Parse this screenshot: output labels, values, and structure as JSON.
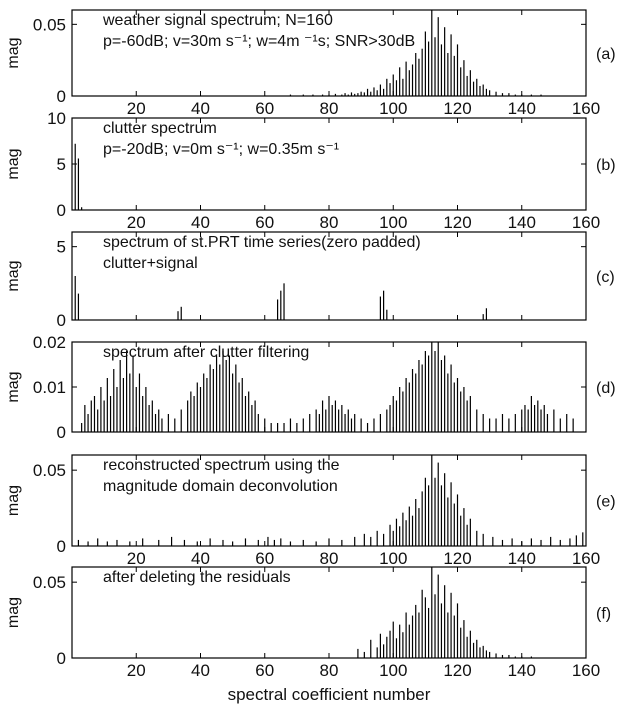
{
  "figure": {
    "xlabel": "spectral coefficient number"
  },
  "chart_data": [
    {
      "type": "bar",
      "panel_label": "(a)",
      "ylabel": "mag",
      "annotations": [
        "weather signal spectrum; N=160",
        "p=-60dB; v=30m s⁻¹; w=4m ⁻¹s; SNR>30dB"
      ],
      "xlim": [
        0,
        160
      ],
      "ylim": [
        0,
        0.06
      ],
      "xticks": [
        20,
        40,
        60,
        80,
        100,
        120,
        140,
        160
      ],
      "yticks": [
        0,
        0.05
      ],
      "ytick_labels": [
        "0",
        "0.05"
      ],
      "x": [
        68,
        72,
        75,
        78,
        80,
        82,
        84,
        85,
        86,
        87,
        88,
        89,
        90,
        91,
        92,
        93,
        94,
        95,
        96,
        97,
        98,
        99,
        100,
        101,
        102,
        103,
        104,
        105,
        106,
        107,
        108,
        109,
        110,
        111,
        112,
        113,
        114,
        115,
        116,
        117,
        118,
        119,
        120,
        121,
        122,
        123,
        124,
        125,
        126,
        127,
        128,
        129,
        130,
        132,
        134,
        136,
        138,
        140,
        143,
        146
      ],
      "values": [
        0.001,
        0.001,
        0.001,
        0.001,
        0.001,
        0.0015,
        0.001,
        0.002,
        0.001,
        0.0025,
        0.0015,
        0.002,
        0.003,
        0.0025,
        0.005,
        0.003,
        0.006,
        0.004,
        0.008,
        0.005,
        0.012,
        0.009,
        0.015,
        0.011,
        0.02,
        0.012,
        0.024,
        0.018,
        0.022,
        0.03,
        0.026,
        0.033,
        0.045,
        0.038,
        0.062,
        0.041,
        0.055,
        0.036,
        0.048,
        0.03,
        0.043,
        0.028,
        0.036,
        0.02,
        0.025,
        0.014,
        0.018,
        0.01,
        0.012,
        0.007,
        0.008,
        0.005,
        0.004,
        0.003,
        0.002,
        0.002,
        0.001,
        0.001,
        0.001,
        0.001
      ]
    },
    {
      "type": "bar",
      "panel_label": "(b)",
      "ylabel": "mag",
      "annotations": [
        "clutter spectrum",
        "p=-20dB; v=0m s⁻¹; w=0.35m s⁻¹"
      ],
      "xlim": [
        0,
        160
      ],
      "ylim": [
        0,
        10
      ],
      "xticks": [
        20,
        40,
        60,
        80,
        100,
        120,
        140,
        160
      ],
      "yticks": [
        0,
        5,
        10
      ],
      "ytick_labels": [
        "0",
        "5",
        "10"
      ],
      "x": [
        1,
        2,
        3
      ],
      "values": [
        7.2,
        5.6,
        0.3
      ]
    },
    {
      "type": "bar",
      "panel_label": "(c)",
      "ylabel": "mag",
      "annotations": [
        "spectrum of st.PRT time series(zero padded)",
        "clutter+signal"
      ],
      "xlim": [
        0,
        160
      ],
      "ylim": [
        0,
        6
      ],
      "xticks": [],
      "yticks": [
        0,
        5
      ],
      "ytick_labels": [
        "0",
        "5"
      ],
      "x": [
        1,
        2,
        33,
        34,
        64,
        65,
        66,
        96,
        97,
        98,
        128,
        129
      ],
      "values": [
        3.0,
        1.8,
        0.6,
        0.9,
        1.4,
        2.0,
        2.5,
        1.6,
        2.0,
        0.7,
        0.4,
        0.8
      ]
    },
    {
      "type": "bar",
      "panel_label": "(d)",
      "ylabel": "mag",
      "annotations": [
        "spectrum after clutter filtering"
      ],
      "xlim": [
        0,
        160
      ],
      "ylim": [
        0,
        0.02
      ],
      "xticks": [],
      "yticks": [
        0,
        0.01,
        0.02
      ],
      "ytick_labels": [
        "0",
        "0.01",
        "0.02"
      ],
      "x": [
        3,
        4,
        5,
        6,
        7,
        8,
        9,
        10,
        11,
        12,
        13,
        14,
        15,
        16,
        17,
        18,
        19,
        20,
        21,
        22,
        23,
        24,
        25,
        26,
        27,
        28,
        30,
        32,
        34,
        36,
        37,
        38,
        39,
        40,
        41,
        42,
        43,
        44,
        45,
        46,
        47,
        48,
        49,
        50,
        51,
        52,
        53,
        54,
        55,
        56,
        57,
        58,
        60,
        62,
        64,
        66,
        68,
        70,
        72,
        74,
        76,
        77,
        78,
        79,
        80,
        81,
        82,
        83,
        84,
        85,
        86,
        87,
        88,
        90,
        92,
        94,
        96,
        98,
        99,
        100,
        101,
        102,
        103,
        104,
        105,
        106,
        107,
        108,
        109,
        110,
        111,
        112,
        113,
        114,
        115,
        116,
        117,
        118,
        119,
        120,
        121,
        122,
        123,
        124,
        126,
        128,
        130,
        132,
        134,
        136,
        138,
        140,
        141,
        142,
        143,
        144,
        145,
        146,
        147,
        148,
        150,
        152,
        154,
        156
      ],
      "values": [
        0.002,
        0.006,
        0.004,
        0.007,
        0.008,
        0.005,
        0.01,
        0.007,
        0.012,
        0.008,
        0.014,
        0.01,
        0.016,
        0.012,
        0.018,
        0.013,
        0.017,
        0.01,
        0.013,
        0.008,
        0.01,
        0.006,
        0.007,
        0.004,
        0.005,
        0.003,
        0.004,
        0.003,
        0.005,
        0.007,
        0.009,
        0.008,
        0.011,
        0.01,
        0.013,
        0.012,
        0.015,
        0.014,
        0.017,
        0.015,
        0.018,
        0.016,
        0.017,
        0.013,
        0.015,
        0.011,
        0.012,
        0.008,
        0.009,
        0.006,
        0.007,
        0.004,
        0.003,
        0.002,
        0.002,
        0.002,
        0.003,
        0.002,
        0.003,
        0.004,
        0.005,
        0.004,
        0.007,
        0.005,
        0.008,
        0.006,
        0.007,
        0.005,
        0.006,
        0.004,
        0.005,
        0.003,
        0.004,
        0.003,
        0.002,
        0.003,
        0.004,
        0.005,
        0.006,
        0.008,
        0.007,
        0.01,
        0.009,
        0.012,
        0.011,
        0.014,
        0.013,
        0.016,
        0.015,
        0.018,
        0.017,
        0.021,
        0.018,
        0.02,
        0.016,
        0.017,
        0.013,
        0.015,
        0.011,
        0.012,
        0.009,
        0.01,
        0.007,
        0.008,
        0.005,
        0.004,
        0.003,
        0.003,
        0.004,
        0.003,
        0.004,
        0.005,
        0.006,
        0.005,
        0.008,
        0.006,
        0.007,
        0.005,
        0.006,
        0.004,
        0.005,
        0.003,
        0.004,
        0.003
      ]
    },
    {
      "type": "bar",
      "panel_label": "(e)",
      "ylabel": "mag",
      "annotations": [
        "reconstructed spectrum using the",
        "magnitude domain deconvolution"
      ],
      "xlim": [
        0,
        160
      ],
      "ylim": [
        0,
        0.06
      ],
      "xticks": [
        20,
        40,
        60,
        80,
        100,
        120,
        140,
        160
      ],
      "yticks": [
        0,
        0.05
      ],
      "ytick_labels": [
        "0",
        "0.05"
      ],
      "x": [
        2,
        5,
        8,
        11,
        14,
        18,
        22,
        27,
        31,
        35,
        39,
        43,
        47,
        50,
        54,
        58,
        61,
        63,
        65,
        68,
        72,
        76,
        80,
        84,
        88,
        91,
        93,
        95,
        97,
        99,
        100,
        101,
        102,
        103,
        104,
        105,
        106,
        107,
        108,
        109,
        110,
        111,
        112,
        113,
        114,
        115,
        116,
        117,
        118,
        119,
        120,
        121,
        122,
        123,
        124,
        126,
        128,
        131,
        134,
        137,
        140,
        143,
        146,
        149,
        152,
        155,
        157,
        159
      ],
      "values": [
        0.004,
        0.003,
        0.005,
        0.003,
        0.004,
        0.003,
        0.005,
        0.004,
        0.006,
        0.004,
        0.003,
        0.005,
        0.004,
        0.003,
        0.005,
        0.004,
        0.006,
        0.004,
        0.005,
        0.003,
        0.004,
        0.003,
        0.005,
        0.004,
        0.006,
        0.008,
        0.006,
        0.01,
        0.008,
        0.014,
        0.01,
        0.018,
        0.013,
        0.022,
        0.017,
        0.026,
        0.02,
        0.031,
        0.025,
        0.036,
        0.045,
        0.04,
        0.062,
        0.045,
        0.055,
        0.04,
        0.048,
        0.032,
        0.042,
        0.028,
        0.034,
        0.02,
        0.025,
        0.014,
        0.018,
        0.01,
        0.008,
        0.006,
        0.004,
        0.005,
        0.003,
        0.005,
        0.004,
        0.006,
        0.004,
        0.005,
        0.007,
        0.009
      ]
    },
    {
      "type": "bar",
      "panel_label": "(f)",
      "ylabel": "mag",
      "annotations": [
        "after deleting the residuals"
      ],
      "xlim": [
        0,
        160
      ],
      "ylim": [
        0,
        0.06
      ],
      "xticks": [
        20,
        40,
        60,
        80,
        100,
        120,
        140,
        160
      ],
      "yticks": [
        0,
        0.05
      ],
      "ytick_labels": [
        "0",
        "0.05"
      ],
      "x": [
        89,
        91,
        93,
        95,
        96,
        97,
        98,
        99,
        100,
        101,
        102,
        103,
        104,
        105,
        106,
        107,
        108,
        109,
        110,
        111,
        112,
        113,
        114,
        115,
        116,
        117,
        118,
        119,
        120,
        121,
        122,
        123,
        124,
        125,
        126,
        127,
        128,
        129,
        130,
        132,
        134,
        136,
        138,
        140,
        143
      ],
      "values": [
        0.006,
        0.004,
        0.012,
        0.007,
        0.016,
        0.009,
        0.014,
        0.018,
        0.024,
        0.013,
        0.022,
        0.017,
        0.03,
        0.022,
        0.028,
        0.035,
        0.03,
        0.045,
        0.04,
        0.033,
        0.062,
        0.042,
        0.055,
        0.036,
        0.048,
        0.03,
        0.043,
        0.028,
        0.036,
        0.02,
        0.025,
        0.014,
        0.018,
        0.01,
        0.012,
        0.007,
        0.008,
        0.005,
        0.004,
        0.003,
        0.002,
        0.002,
        0.001,
        0.001,
        0.001
      ]
    }
  ]
}
